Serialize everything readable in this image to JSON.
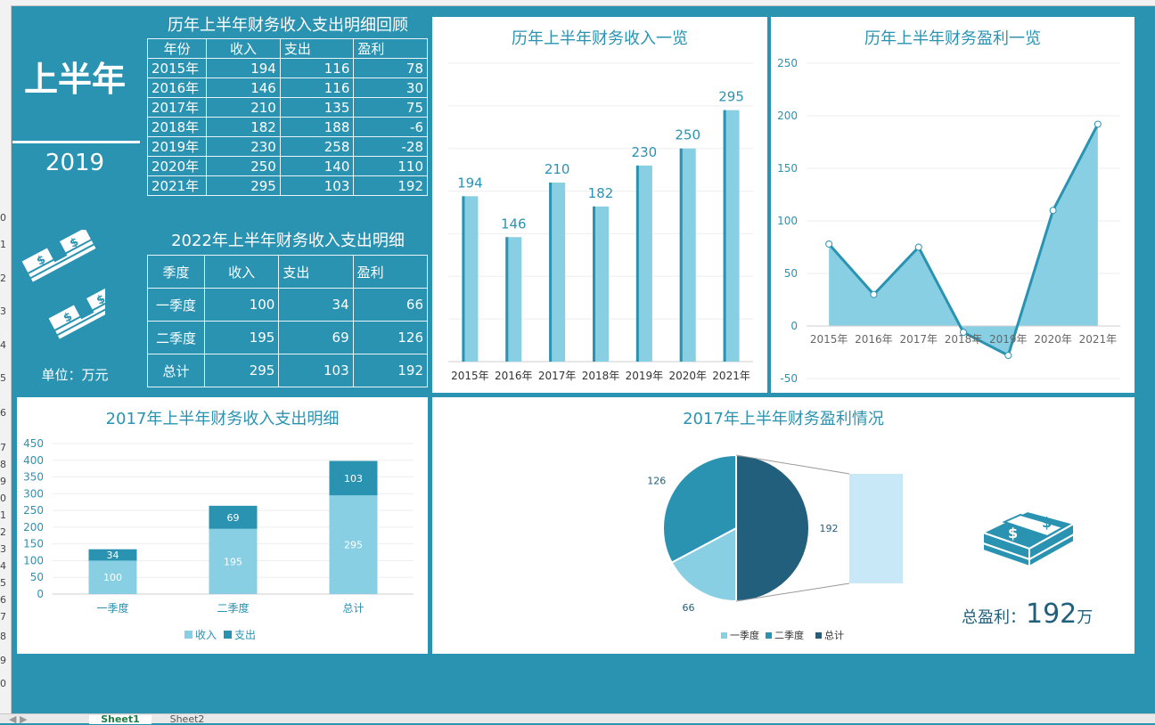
{
  "sheet_tabs": [
    "Sheet1",
    "Sheet2"
  ],
  "row_numbers": [
    "0",
    "1",
    "2",
    "3",
    "4",
    "5",
    "6",
    "7",
    "8",
    "9",
    "0",
    "1",
    "2",
    "3",
    "4",
    "5",
    "6",
    "7",
    "8",
    "9",
    "0"
  ],
  "left_summary": {
    "title": "上半年",
    "year": "2019",
    "unit_label": "单位：万元"
  },
  "history_table": {
    "title": "历年上半年财务收入支出明细回顾",
    "headers": [
      "年份",
      "收入",
      "支出",
      "盈利"
    ],
    "rows": [
      [
        "2015年",
        "194",
        "116",
        "78"
      ],
      [
        "2016年",
        "146",
        "116",
        "30"
      ],
      [
        "2017年",
        "210",
        "135",
        "75"
      ],
      [
        "2018年",
        "182",
        "188",
        "-6"
      ],
      [
        "2019年",
        "230",
        "258",
        "-28"
      ],
      [
        "2020年",
        "250",
        "140",
        "110"
      ],
      [
        "2021年",
        "295",
        "103",
        "192"
      ]
    ]
  },
  "detail_table": {
    "title": "2022年上半年财务收入支出明细",
    "headers": [
      "季度",
      "收入",
      "支出",
      "盈利"
    ],
    "rows": [
      [
        "一季度",
        "100",
        "34",
        "66"
      ],
      [
        "二季度",
        "195",
        "69",
        "126"
      ],
      [
        "总计",
        "295",
        "103",
        "192"
      ]
    ]
  },
  "total_profit": {
    "label": "总盈利：",
    "value": "192",
    "unit": "万"
  },
  "colors": {
    "teal": "#2a93b2",
    "light_blue": "#88cfe3",
    "dark_blue": "#225f7d",
    "pale_blue": "#c8e8f7"
  },
  "chart_data": [
    {
      "id": "income",
      "type": "bar",
      "title": "历年上半年财务收入一览",
      "categories": [
        "2015年",
        "2016年",
        "2017年",
        "2018年",
        "2019年",
        "2020年",
        "2021年"
      ],
      "values": [
        194,
        146,
        210,
        182,
        230,
        250,
        295
      ],
      "ylim": [
        0,
        350
      ]
    },
    {
      "id": "profit",
      "type": "area",
      "title": "历年上半年财务盈利一览",
      "categories": [
        "2015年",
        "2016年",
        "2017年",
        "2018年",
        "2019年",
        "2020年",
        "2021年"
      ],
      "values": [
        78,
        30,
        75,
        -6,
        -28,
        110,
        192
      ],
      "ylim": [
        -50,
        250
      ],
      "yticks": [
        -50,
        0,
        50,
        100,
        150,
        200,
        250
      ]
    },
    {
      "id": "quarter",
      "type": "bar",
      "stacked": true,
      "title": "2017年上半年财务收入支出明细",
      "categories": [
        "一季度",
        "二季度",
        "总计"
      ],
      "series": [
        {
          "name": "收入",
          "values": [
            100,
            195,
            295
          ]
        },
        {
          "name": "支出",
          "values": [
            34,
            69,
            103
          ]
        }
      ],
      "ylim": [
        0,
        450
      ],
      "yticks": [
        0,
        50,
        100,
        150,
        200,
        250,
        300,
        350,
        400,
        450
      ]
    },
    {
      "id": "pie",
      "type": "pie",
      "title": "2017年上半年财务盈利情况",
      "labels": [
        "一季度",
        "二季度",
        "总计"
      ],
      "values": [
        66,
        126,
        192
      ]
    }
  ]
}
